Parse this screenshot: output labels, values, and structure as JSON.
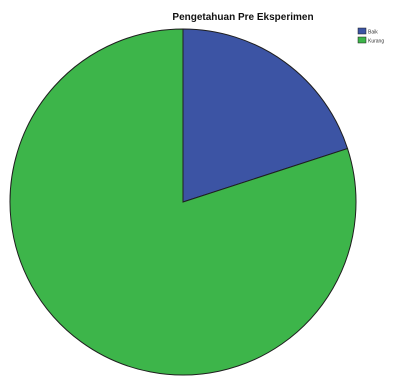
{
  "chart_data": {
    "type": "pie",
    "title": "Pengetahuan Pre Eksperimen",
    "categories": [
      "Baik",
      "Kurang"
    ],
    "values": [
      20,
      80
    ],
    "colors": [
      "#3C54A4",
      "#3DB54A"
    ],
    "legend_position": "top-right",
    "start_angle_deg": 0,
    "direction": "clockwise"
  }
}
